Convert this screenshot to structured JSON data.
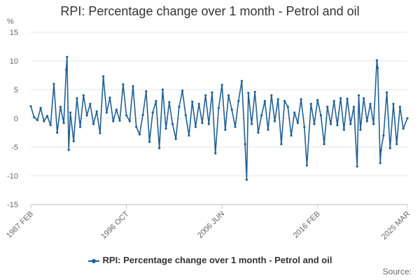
{
  "chart_data": {
    "type": "line",
    "title": "RPI: Percentage change over 1 month - Petrol and oil",
    "unit_label": "%",
    "xlabel": "",
    "ylabel": "",
    "ylim": [
      -15,
      15
    ],
    "y_ticks": [
      15,
      10,
      5,
      0,
      -5,
      -10,
      -15
    ],
    "x_range": [
      "1987 FEB",
      "2025 MAR"
    ],
    "x_tick_labels": [
      "1987 FEB",
      "1996 OCT",
      "2006 JUN",
      "2016 FEB",
      "2025 MAR"
    ],
    "grid": "horizontal",
    "legend_position": "bottom",
    "color": "#206095",
    "series": [
      {
        "name": "RPI: Percentage change over 1 month - Petrol and oil",
        "x": [
          "1987-02",
          "1987-06",
          "1987-10",
          "1988-02",
          "1988-06",
          "1988-10",
          "1989-02",
          "1989-06",
          "1989-10",
          "1990-02",
          "1990-06",
          "1990-09",
          "1990-10",
          "1990-12",
          "1991-02",
          "1991-06",
          "1991-10",
          "1992-02",
          "1992-06",
          "1992-10",
          "1993-02",
          "1993-06",
          "1993-10",
          "1994-02",
          "1994-06",
          "1994-10",
          "1995-02",
          "1995-06",
          "1995-10",
          "1996-02",
          "1996-06",
          "1996-10",
          "1997-02",
          "1997-06",
          "1997-10",
          "1998-02",
          "1998-06",
          "1998-10",
          "1999-02",
          "1999-06",
          "1999-10",
          "2000-02",
          "2000-06",
          "2000-10",
          "2001-02",
          "2001-06",
          "2001-10",
          "2002-02",
          "2002-06",
          "2002-10",
          "2003-02",
          "2003-06",
          "2003-10",
          "2004-02",
          "2004-06",
          "2004-10",
          "2005-02",
          "2005-06",
          "2005-10",
          "2006-02",
          "2006-06",
          "2006-10",
          "2007-02",
          "2007-06",
          "2007-10",
          "2008-02",
          "2008-06",
          "2008-10",
          "2008-12",
          "2009-02",
          "2009-06",
          "2009-10",
          "2010-02",
          "2010-06",
          "2010-10",
          "2011-02",
          "2011-06",
          "2011-10",
          "2012-02",
          "2012-06",
          "2012-10",
          "2013-02",
          "2013-06",
          "2013-10",
          "2014-02",
          "2014-06",
          "2014-10",
          "2015-01",
          "2015-06",
          "2015-10",
          "2016-02",
          "2016-06",
          "2016-10",
          "2017-02",
          "2017-06",
          "2017-10",
          "2018-02",
          "2018-06",
          "2018-10",
          "2019-02",
          "2019-06",
          "2019-10",
          "2020-02",
          "2020-04",
          "2020-06",
          "2020-10",
          "2021-02",
          "2021-06",
          "2021-10",
          "2022-02",
          "2022-03",
          "2022-06",
          "2022-07",
          "2022-10",
          "2023-02",
          "2023-06",
          "2023-10",
          "2024-02",
          "2024-06",
          "2024-10",
          "2025-03"
        ],
        "values": [
          2.1,
          0.2,
          -0.3,
          1.8,
          -0.5,
          0.4,
          -1.2,
          6.0,
          -2.5,
          2.0,
          -0.8,
          8.5,
          10.7,
          -5.5,
          1.0,
          -4.0,
          3.5,
          -1.5,
          4.0,
          0.5,
          2.5,
          -1.0,
          1.2,
          -2.6,
          7.3,
          1.0,
          3.6,
          -0.5,
          1.5,
          -0.4,
          5.9,
          0.5,
          -0.5,
          5.6,
          -1.5,
          -2.8,
          0.6,
          4.7,
          -4.1,
          1.0,
          3.0,
          -5.2,
          5.0,
          -1.8,
          2.8,
          -1.0,
          -3.6,
          2.0,
          4.8,
          0.5,
          -3.0,
          2.9,
          -1.5,
          2.5,
          -0.8,
          4.0,
          -1.0,
          4.5,
          -6.1,
          1.8,
          5.8,
          -2.0,
          4.0,
          1.5,
          -1.5,
          3.0,
          6.5,
          -4.5,
          -10.7,
          4.4,
          -1.0,
          4.6,
          -2.5,
          0.5,
          3.0,
          -2.0,
          4.0,
          -0.5,
          3.3,
          -4.5,
          3.0,
          2.0,
          -3.0,
          1.0,
          -0.8,
          3.3,
          -1.5,
          -8.2,
          2.5,
          -1.0,
          3.2,
          0.5,
          -4.5,
          2.0,
          -1.0,
          3.0,
          -1.2,
          3.5,
          -2.0,
          3.4,
          -1.0,
          2.0,
          -8.4,
          4.0,
          -2.0,
          3.5,
          -0.5,
          2.5,
          -1.0,
          10.1,
          8.8,
          -7.8,
          -5.5,
          -3.0,
          4.5,
          -5.2,
          2.5,
          -4.5,
          2.0,
          -1.8,
          0.0
        ]
      }
    ],
    "credits_text": "Source:"
  }
}
